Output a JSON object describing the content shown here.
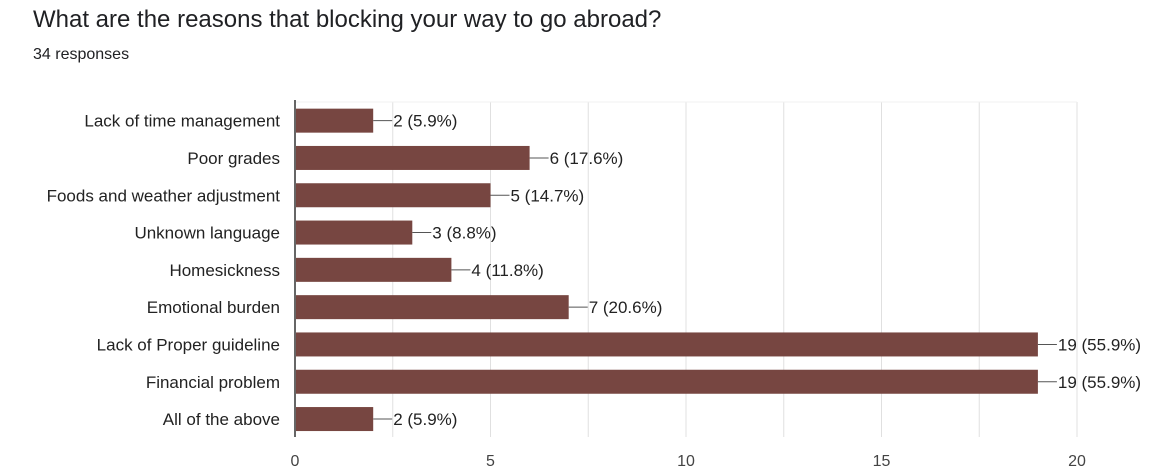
{
  "header": {
    "title": "What are the reasons that blocking your way to go abroad?",
    "responses": "34 responses"
  },
  "colors": {
    "bar": "#774641",
    "grid": "#e0e0e0",
    "axis": "#333333"
  },
  "chart_data": {
    "type": "bar",
    "orientation": "horizontal",
    "title": "What are the reasons that blocking your way to go abroad?",
    "subtitle": "34 responses",
    "categories": [
      "Lack of time management",
      "Poor grades",
      "Foods and weather adjustment",
      "Unknown language",
      "Homesickness",
      "Emotional burden",
      "Lack of Proper guideline",
      "Financial problem",
      "All of the above"
    ],
    "values": [
      2,
      6,
      5,
      3,
      4,
      7,
      19,
      19,
      2
    ],
    "data_labels": [
      "2 (5.9%)",
      "6 (17.6%)",
      "5 (14.7%)",
      "3 (8.8%)",
      "4 (11.8%)",
      "7 (20.6%)",
      "19 (55.9%)",
      "19 (55.9%)",
      "2 (5.9%)"
    ],
    "x_ticks": [
      0,
      5,
      10,
      15,
      20
    ],
    "x_tick_labels": [
      "0",
      "5",
      "10",
      "15",
      "20"
    ],
    "xlim": [
      0,
      20
    ],
    "grid": true,
    "legend": "none"
  }
}
